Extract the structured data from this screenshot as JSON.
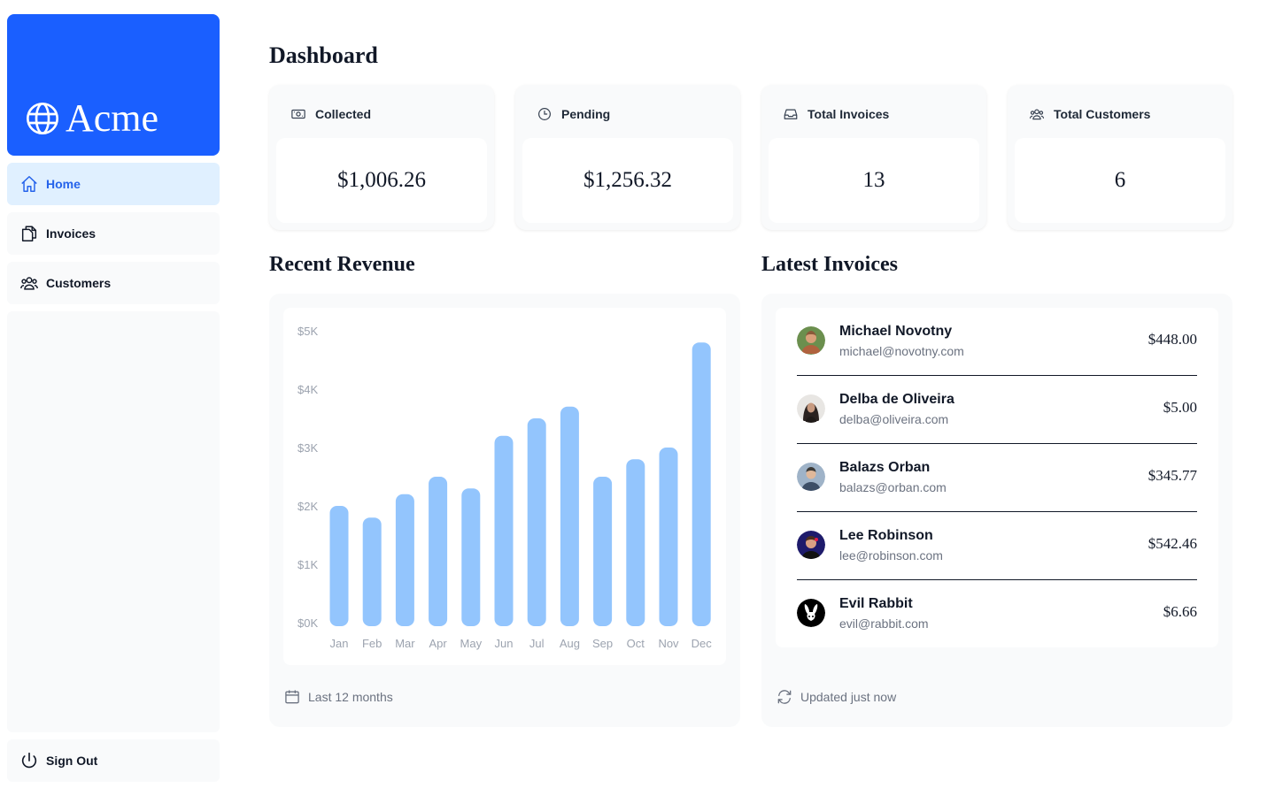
{
  "brand": {
    "name": "Acme",
    "color": "#1a5fff"
  },
  "nav": {
    "home": {
      "label": "Home",
      "icon": "home-icon"
    },
    "invoices": {
      "label": "Invoices",
      "icon": "document-duplicate-icon"
    },
    "customers": {
      "label": "Customers",
      "icon": "user-group-icon"
    },
    "signout": {
      "label": "Sign Out",
      "icon": "power-icon"
    }
  },
  "page": {
    "title": "Dashboard"
  },
  "cards": [
    {
      "label": "Collected",
      "value": "$1,006.26",
      "icon": "banknotes-icon"
    },
    {
      "label": "Pending",
      "value": "$1,256.32",
      "icon": "clock-icon"
    },
    {
      "label": "Total Invoices",
      "value": "13",
      "icon": "inbox-icon"
    },
    {
      "label": "Total Customers",
      "value": "6",
      "icon": "user-group-icon"
    }
  ],
  "revenue": {
    "title": "Recent Revenue",
    "footer": "Last 12 months",
    "bar_color": "#93c5fd"
  },
  "chart_data": {
    "type": "bar",
    "categories": [
      "Jan",
      "Feb",
      "Mar",
      "Apr",
      "May",
      "Jun",
      "Jul",
      "Aug",
      "Sep",
      "Oct",
      "Nov",
      "Dec"
    ],
    "values": [
      2000,
      1800,
      2200,
      2500,
      2300,
      3200,
      3500,
      3700,
      2500,
      2800,
      3000,
      4800
    ],
    "y_ticks": [
      "$0K",
      "$1K",
      "$2K",
      "$3K",
      "$4K",
      "$5K"
    ],
    "ylim": [
      0,
      5000
    ],
    "xlabel": "",
    "ylabel": "",
    "grid": false,
    "legend": "none"
  },
  "latest": {
    "title": "Latest Invoices",
    "footer": "Updated just now",
    "invoices": [
      {
        "name": "Michael Novotny",
        "email": "michael@novotny.com",
        "amount": "$448.00"
      },
      {
        "name": "Delba de Oliveira",
        "email": "delba@oliveira.com",
        "amount": "$5.00"
      },
      {
        "name": "Balazs Orban",
        "email": "balazs@orban.com",
        "amount": "$345.77"
      },
      {
        "name": "Lee Robinson",
        "email": "lee@robinson.com",
        "amount": "$542.46"
      },
      {
        "name": "Evil Rabbit",
        "email": "evil@rabbit.com",
        "amount": "$6.66"
      }
    ]
  }
}
